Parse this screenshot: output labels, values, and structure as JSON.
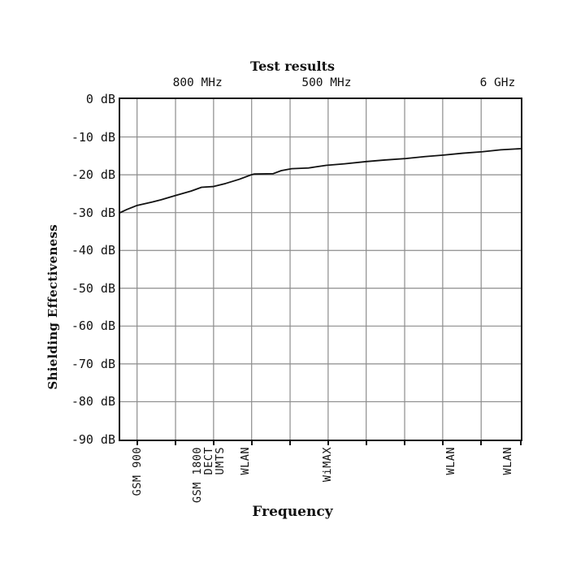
{
  "chart_data": {
    "type": "line",
    "title": "Test results",
    "xlabel": "Frequency",
    "ylabel": "Shielding Effectiveness",
    "y_unit": "dB",
    "ylim": [
      -90,
      0
    ],
    "grid": true,
    "legend": null,
    "colors": {
      "line": "#111111",
      "grid": "#8c8c8c",
      "frame": "#141414",
      "background": "#ffffff",
      "text": "#111111"
    },
    "y_ticks": [
      {
        "value": 0,
        "label": "0 dB"
      },
      {
        "value": -10,
        "label": "-10 dB"
      },
      {
        "value": -20,
        "label": "-20 dB"
      },
      {
        "value": -30,
        "label": "-30 dB"
      },
      {
        "value": -40,
        "label": "-40 dB"
      },
      {
        "value": -50,
        "label": "-50 dB"
      },
      {
        "value": -60,
        "label": "-60 dB"
      },
      {
        "value": -70,
        "label": "-70 dB"
      },
      {
        "value": -80,
        "label": "-80 dB"
      },
      {
        "value": -90,
        "label": "-90 dB"
      }
    ],
    "top_axis_ticks": [
      {
        "label": "800 MHz",
        "x_pct": 19.3
      },
      {
        "label": "500 MHz",
        "x_pct": 51.5
      },
      {
        "label": "6 GHz",
        "x_pct": 94.2
      }
    ],
    "x_category_ticks": [
      {
        "label": "GSM 900",
        "x_pct": 4.2
      },
      {
        "label": "GSM 1800",
        "x_pct": 19.2
      },
      {
        "label": "DECT",
        "x_pct": 22.2
      },
      {
        "label": "UMTS",
        "x_pct": 24.9
      },
      {
        "label": "WLAN",
        "x_pct": 31.3
      },
      {
        "label": "WiMAX",
        "x_pct": 51.8
      },
      {
        "label": "WLAN",
        "x_pct": 82.5
      },
      {
        "label": "WLAN",
        "x_pct": 96.8
      }
    ],
    "x_gridlines_pct": [
      4.2,
      13.8,
      23.3,
      32.8,
      42.4,
      51.9,
      61.4,
      71.0,
      80.5,
      90.1
    ],
    "series": [
      {
        "name": "Shielding effectiveness",
        "color": "#111111",
        "points_x_pct_db": [
          [
            0,
            -30.0
          ],
          [
            1.6,
            -29.2
          ],
          [
            4.2,
            -28.1
          ],
          [
            8.0,
            -27.2
          ],
          [
            10.2,
            -26.6
          ],
          [
            13.7,
            -25.5
          ],
          [
            17.7,
            -24.3
          ],
          [
            20.3,
            -23.3
          ],
          [
            23.3,
            -23.1
          ],
          [
            26.3,
            -22.3
          ],
          [
            29.7,
            -21.2
          ],
          [
            32.7,
            -20.0
          ],
          [
            33.5,
            -19.8
          ],
          [
            38.2,
            -19.7
          ],
          [
            40.2,
            -18.9
          ],
          [
            42.8,
            -18.4
          ],
          [
            47.0,
            -18.2
          ],
          [
            48.8,
            -17.9
          ],
          [
            51.4,
            -17.5
          ],
          [
            56.0,
            -17.1
          ],
          [
            61.5,
            -16.5
          ],
          [
            66.0,
            -16.1
          ],
          [
            71.3,
            -15.7
          ],
          [
            76.0,
            -15.2
          ],
          [
            80.7,
            -14.8
          ],
          [
            85.5,
            -14.3
          ],
          [
            90.4,
            -13.9
          ],
          [
            95.0,
            -13.4
          ],
          [
            100,
            -13.1
          ]
        ]
      }
    ]
  }
}
